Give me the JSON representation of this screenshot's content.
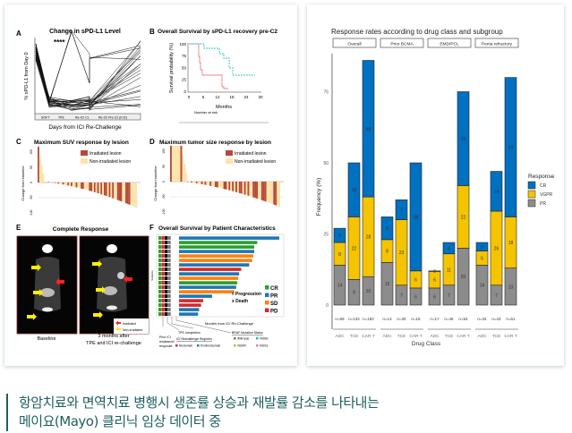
{
  "left_figure": {
    "panel_a": {
      "letter": "A",
      "title": "Change in sPD-L1 Level",
      "ylabel": "% sPD-L1 from Day 0",
      "xlabel": "Days from ICI Re-Challenge",
      "significance": "****",
      "phases": [
        "SOFT",
        "TPE",
        "Re-ICI C1",
        "Re-ICI Pre-C2 (ICI2)"
      ]
    },
    "panel_b": {
      "letter": "B",
      "title": "Overall Survival by sPD-L1 recovery pre-C2",
      "ylabel": "Survival probability (%)",
      "xlabel": "Months",
      "yticks": [
        "0",
        "25",
        "50",
        "75",
        "100"
      ],
      "xticks": [
        "0",
        "6",
        "12",
        "18",
        "24",
        "30"
      ],
      "risk_title": "Number at risk",
      "colors": {
        "incomplete": "#f08080",
        "complete": "#2ec4c4"
      }
    },
    "panel_c": {
      "letter": "C",
      "title": "Maximum SUV response by lesion",
      "ylabel": "Change from baseline",
      "legend": [
        "Irradiated lesion",
        "Non-irradiated lesion"
      ],
      "yticks": [
        "100",
        "50",
        "0",
        "-50",
        "-100"
      ]
    },
    "panel_d": {
      "letter": "D",
      "title": "Maximum tumor size response by lesion",
      "ylabel": "Change from baseline",
      "legend": [
        "Irradiated lesion",
        "Non-irradiated lesion"
      ],
      "yticks": [
        "100",
        "50",
        "0",
        "-50",
        "-100"
      ]
    },
    "panel_e": {
      "letter": "E",
      "title": "Complete Response",
      "baseline_label": "Baseline",
      "after_label_1": "3 months after",
      "after_label_2": "TPE and ICI re-challenge",
      "legend": [
        "Irradiated",
        "Non-irradiated"
      ]
    },
    "panel_f": {
      "letter": "F",
      "title": "Overall Survival by Patient Characteristics",
      "ylabel": "Subjects",
      "xlabel": "Months from ICI Re-Challenge",
      "legend": [
        "CR",
        "PR",
        "SD",
        "PD"
      ],
      "markers": [
        "◊ Progression",
        "x Death"
      ],
      "annotations": {
        "prior": "Prior ICI",
        "resistance": "resistance/",
        "response": "response",
        "tpe": "TPE completion",
        "regimen": "ICI Rechallenge Regimen",
        "braf": "BRAF Mutation Status",
        "wild": "Wild-type",
        "v600e": "V600E",
        "v600r": "V600R",
        "k601e": "K601E",
        "nivo": "Nivolumab",
        "pembro": "Pembrolizumab"
      },
      "colors": {
        "CR": "#2ca02c",
        "PR": "#1f77b4",
        "SD": "#ff7f0e",
        "PD": "#d62728"
      },
      "bars": [
        {
          "r": "PR",
          "v": 100
        },
        {
          "r": "CR",
          "v": 78
        },
        {
          "r": "CR",
          "v": 75
        },
        {
          "r": "PR",
          "v": 75
        },
        {
          "r": "SD",
          "v": 74
        },
        {
          "r": "SD",
          "v": 73
        },
        {
          "r": "PR",
          "v": 70
        },
        {
          "r": "PD",
          "v": 62
        },
        {
          "r": "PR",
          "v": 60
        },
        {
          "r": "SD",
          "v": 59
        },
        {
          "r": "CR",
          "v": 58
        },
        {
          "r": "PR",
          "v": 57
        },
        {
          "r": "SD",
          "v": 55
        },
        {
          "r": "PR",
          "v": 33
        },
        {
          "r": "PD",
          "v": 24
        },
        {
          "r": "PD",
          "v": 22
        },
        {
          "r": "PR",
          "v": 20
        },
        {
          "r": "PR",
          "v": 19
        }
      ]
    }
  },
  "chart_data": {
    "type": "bar",
    "stacked": true,
    "title": "Response rates according to drug class and subgroup",
    "xlabel": "Drug Class",
    "ylabel": "Frequency (%)",
    "ylim": [
      0,
      90
    ],
    "yticks": [
      "0",
      "25",
      "50",
      "75"
    ],
    "legend_title": "Response",
    "legend_position": "right",
    "series_colors": {
      "CR": "#0070c0",
      "VGPR": "#f5c400",
      "PR": "#8c8c8c"
    },
    "legend": [
      "CR",
      "VGPR",
      "PR"
    ],
    "panels": [
      {
        "name": "Overall",
        "categories": [
          "ADC",
          "TCE",
          "CAR T"
        ],
        "n": [
          "n=59",
          "n=134",
          "n=192"
        ],
        "PR": [
          14,
          9,
          10
        ],
        "VGPR": [
          8,
          22,
          28
        ],
        "CR": [
          5,
          19,
          48
        ]
      },
      {
        "name": "Prior BCMA",
        "categories": [
          "ADC",
          "TCE",
          "CAR T"
        ],
        "n": [
          "n=13",
          "n=30",
          "n=16"
        ],
        "PR": [
          15,
          7,
          6
        ],
        "VGPR": [
          8,
          23,
          6
        ],
        "CR": [
          8,
          7,
          38
        ]
      },
      {
        "name": "EMD/PCL",
        "categories": [
          "ADC",
          "TCE",
          "CAR T"
        ],
        "n": [
          "n=17",
          "n=46",
          "n=54"
        ],
        "PR": [
          6,
          7,
          20
        ],
        "VGPR": [
          6,
          11,
          22
        ],
        "CR": [
          0,
          4,
          33
        ]
      },
      {
        "name": "Penta refractory",
        "categories": [
          "ADC",
          "TCE",
          "CAR T"
        ],
        "n": [
          "n=34",
          "n=43",
          "n=61"
        ],
        "PR": [
          14,
          7,
          13
        ],
        "VGPR": [
          5,
          26,
          18
        ],
        "CR": [
          3,
          14,
          49
        ]
      }
    ]
  },
  "caption": {
    "line1": "항암치료와 면역치료 병행시 생존률 상승과 재발률 감소를 나타내는",
    "line2": "메이요(Mayo) 클리닉 임상 데이터 중"
  }
}
